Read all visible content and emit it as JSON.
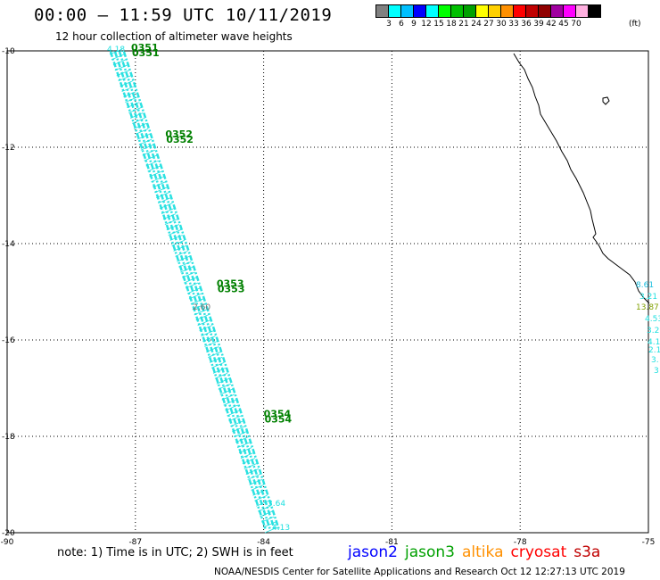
{
  "header": {
    "title": "00:00 – 11:59 UTC 10/11/2019",
    "subtitle": "12 hour collection of altimeter wave heights"
  },
  "colorbar": {
    "colors": [
      "#808080",
      "#00ffff",
      "#00c0ff",
      "#0000ff",
      "#00ffff",
      "#00ff00",
      "#00c000",
      "#00a000",
      "#ffff00",
      "#ffd000",
      "#ff9000",
      "#ff0000",
      "#c00000",
      "#900000",
      "#a000a0",
      "#ff00ff",
      "#ffb0e0",
      "#000000"
    ],
    "labels": [
      "3",
      "6",
      "9",
      "12",
      "15",
      "18",
      "21",
      "24",
      "27",
      "30",
      "33",
      "36",
      "39",
      "42",
      "45",
      "70"
    ],
    "units": "(ft)"
  },
  "axes": {
    "y_labels": [
      "-10",
      "-12",
      "-14",
      "-16",
      "-18",
      "-20"
    ],
    "y_values": [
      -10,
      -12,
      -14,
      -16,
      -18,
      -20
    ],
    "x_labels": [
      "-90",
      "-87",
      "-84",
      "-81",
      "-78",
      "-75"
    ],
    "x_values": [
      -90,
      -87,
      -84,
      -81,
      -78,
      -75
    ]
  },
  "tracks": {
    "color": "#20e0e0",
    "pass_color": "#008000",
    "pass_labels": [
      {
        "text": "0351",
        "lon": -87.1,
        "lat": -10.0
      },
      {
        "text": "0352",
        "lon": -86.3,
        "lat": -11.8
      },
      {
        "text": "0353",
        "lon": -85.1,
        "lat": -14.9
      },
      {
        "text": "0354",
        "lon": -84.0,
        "lat": -17.6
      }
    ],
    "sample_values": [
      "4.18",
      "2.60",
      "3.64",
      "4.13"
    ]
  },
  "coast_values": [
    {
      "text": "8.61",
      "color": "#20c0e0"
    },
    {
      "text": "3.21",
      "color": "#20e0e0"
    },
    {
      "text": "13.87",
      "color": "#80a000"
    },
    {
      "text": "4.53",
      "color": "#20e0e0"
    },
    {
      "text": "3.2",
      "color": "#20e0e0"
    },
    {
      "text": "4.1",
      "color": "#20e0e0"
    },
    {
      "text": "2.1",
      "color": "#20e0e0"
    },
    {
      "text": "3.",
      "color": "#20e0e0"
    },
    {
      "text": "3",
      "color": "#20e0e0"
    }
  ],
  "note": "note: 1) Time is in UTC; 2) SWH is in feet",
  "legend": [
    {
      "name": "jason2",
      "color": "#0000ff"
    },
    {
      "name": "jason3",
      "color": "#00a000"
    },
    {
      "name": "altika",
      "color": "#ff9000"
    },
    {
      "name": "cryosat",
      "color": "#ff0000"
    },
    {
      "name": "s3a",
      "color": "#c00000"
    }
  ],
  "footer": "NOAA/NESDIS Center for Satellite Applications and Research    Oct 12 12:27:13 UTC 2019"
}
